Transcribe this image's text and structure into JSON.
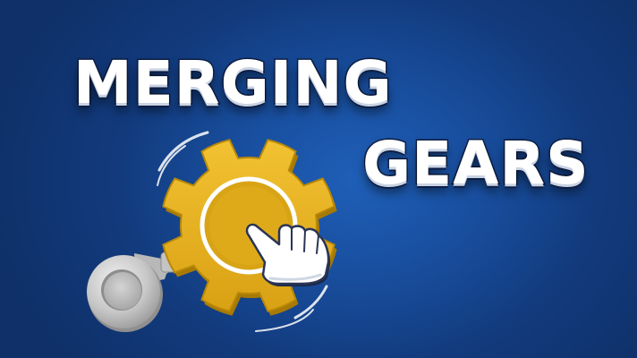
{
  "title": {
    "line1": "MERGING",
    "line2": "GEARS"
  },
  "colors": {
    "background": "#164595",
    "gear_main": "#e7b221",
    "gear_dark": "#b98808",
    "gear_silver": "#c6c6c6",
    "ring": "#ffffff",
    "text": "#ffffff",
    "text_outline": "#0d1e44"
  },
  "icons": [
    "gold-gear-icon",
    "silver-gear-icon",
    "pointing-hand-icon",
    "motion-arc-icon"
  ]
}
